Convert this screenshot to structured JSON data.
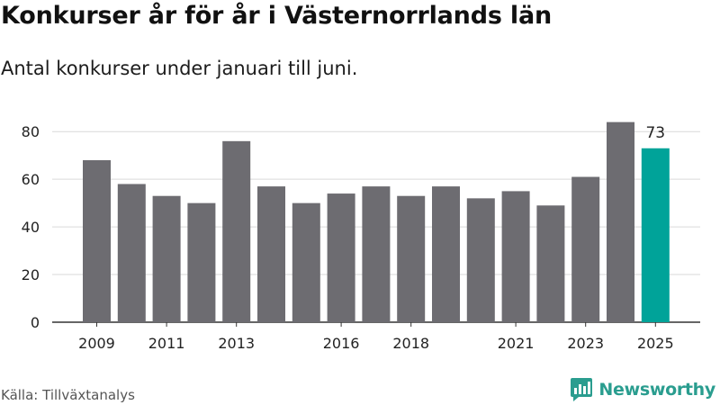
{
  "header": {
    "title": "Konkurser år för år i Västernorrlands län",
    "subtitle": "Antal konkurser under januari till juni."
  },
  "footer": {
    "source": "Källa: Tillväxtanalys",
    "brand": "Newsworthy"
  },
  "colors": {
    "bar_default": "#6d6c71",
    "bar_highlight": "#00a399",
    "brand": "#2a9d8f"
  },
  "chart_data": {
    "type": "bar",
    "categories": [
      "2009",
      "2010",
      "2011",
      "2012",
      "2013",
      "2014",
      "2015",
      "2016",
      "2017",
      "2018",
      "2019",
      "2020",
      "2021",
      "2022",
      "2023",
      "2024",
      "2025"
    ],
    "values": [
      68,
      58,
      53,
      50,
      76,
      57,
      50,
      54,
      57,
      53,
      57,
      52,
      55,
      49,
      61,
      84,
      73
    ],
    "x_tick_labels": [
      "2009",
      "2011",
      "2013",
      "2016",
      "2018",
      "2021",
      "2023",
      "2025"
    ],
    "y_ticks": [
      0,
      20,
      40,
      60,
      80
    ],
    "ylim": [
      0,
      85
    ],
    "highlight_category": "2025",
    "data_labels": [
      {
        "category": "2025",
        "text": "73"
      }
    ],
    "grid": true
  }
}
